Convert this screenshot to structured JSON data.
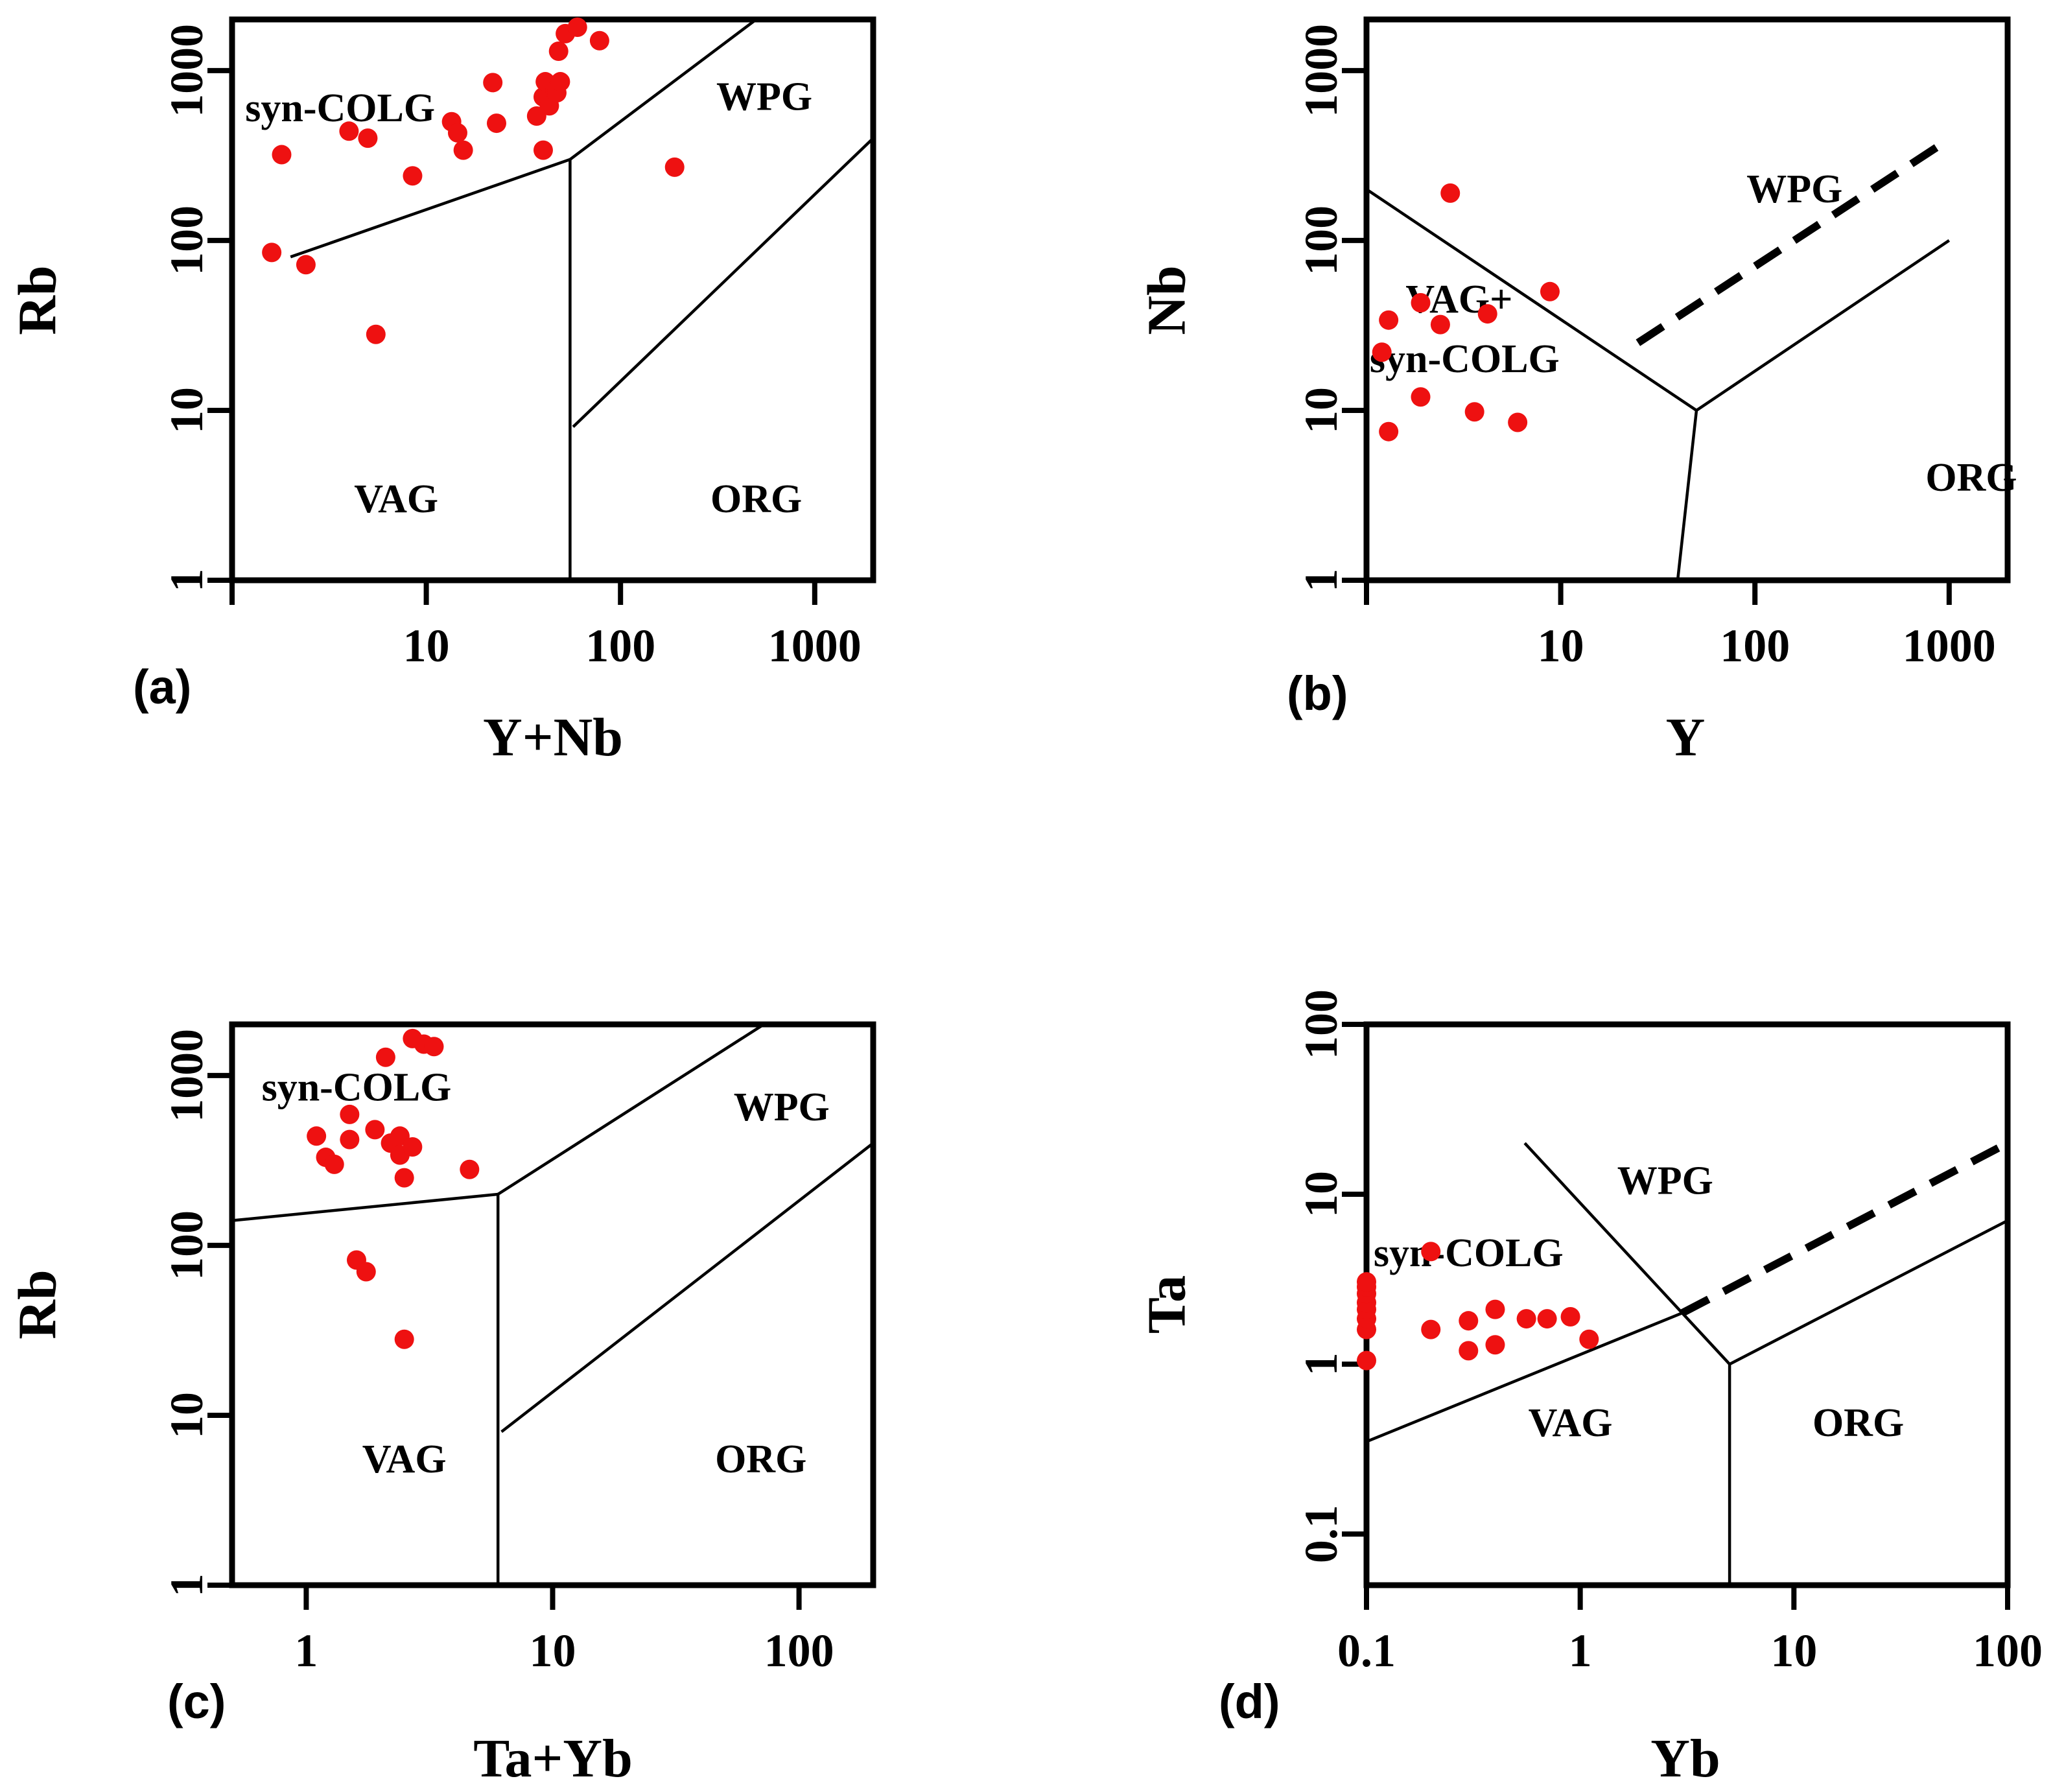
{
  "chart_data": [
    {
      "type": "scatter",
      "panel_label": "(a)",
      "xlabel": "Y+Nb",
      "ylabel": "Rb",
      "x_scale": "log",
      "y_scale": "log",
      "xlim": [
        1,
        2000
      ],
      "ylim": [
        1,
        2000
      ],
      "x_ticks": [
        {
          "value": 1,
          "label": ""
        },
        {
          "value": 10,
          "label": "10"
        },
        {
          "value": 100,
          "label": "100"
        },
        {
          "value": 1000,
          "label": "1000"
        }
      ],
      "y_ticks": [
        {
          "value": 1,
          "label": "1"
        },
        {
          "value": 10,
          "label": "10"
        },
        {
          "value": 100,
          "label": "100"
        },
        {
          "value": 1000,
          "label": "1000"
        }
      ],
      "regions": [
        {
          "label": "syn-COLG",
          "x": 3.6,
          "y": 600
        },
        {
          "label": "WPG",
          "x": 550,
          "y": 700
        },
        {
          "label": "VAG",
          "x": 7,
          "y": 3
        },
        {
          "label": "ORG",
          "x": 500,
          "y": 3
        }
      ],
      "boundaries": [
        {
          "style": "solid",
          "points": [
            [
              2,
              80
            ],
            [
              55,
              300
            ],
            [
              55,
              1
            ]
          ]
        },
        {
          "style": "solid",
          "points": [
            [
              55,
              300
            ],
            [
              500,
              2000
            ]
          ]
        },
        {
          "style": "solid",
          "points": [
            [
              57,
              8
            ],
            [
              2000,
              400
            ]
          ]
        }
      ],
      "series": [
        {
          "name": "samples",
          "color": "#ee1111",
          "points": [
            [
              1.8,
              320
            ],
            [
              1.6,
              85
            ],
            [
              2.4,
              72
            ],
            [
              4,
              440
            ],
            [
              5,
              400
            ],
            [
              5.5,
              28
            ],
            [
              8.5,
              240
            ],
            [
              13.5,
              500
            ],
            [
              14.5,
              430
            ],
            [
              15.5,
              340
            ],
            [
              22,
              850
            ],
            [
              23,
              490
            ],
            [
              37,
              540
            ],
            [
              40,
              340
            ],
            [
              40,
              700
            ],
            [
              41,
              860
            ],
            [
              43,
              620
            ],
            [
              46,
              760
            ],
            [
              47,
              740
            ],
            [
              49,
              860
            ],
            [
              48,
              1300
            ],
            [
              52,
              1650
            ],
            [
              60,
              1800
            ],
            [
              78,
              1500
            ],
            [
              190,
              270
            ]
          ]
        }
      ]
    },
    {
      "type": "scatter",
      "panel_label": "(b)",
      "xlabel": "Y",
      "ylabel": "Nb",
      "x_scale": "log",
      "y_scale": "log",
      "xlim": [
        1,
        2000
      ],
      "ylim": [
        1,
        2000
      ],
      "x_ticks": [
        {
          "value": 1,
          "label": ""
        },
        {
          "value": 10,
          "label": "10"
        },
        {
          "value": 100,
          "label": "100"
        },
        {
          "value": 1000,
          "label": "1000"
        }
      ],
      "y_ticks": [
        {
          "value": 1,
          "label": "1"
        },
        {
          "value": 10,
          "label": "10"
        },
        {
          "value": 100,
          "label": "100"
        },
        {
          "value": 1000,
          "label": "1000"
        }
      ],
      "regions": [
        {
          "label": "WPG",
          "x": 160,
          "y": 200
        },
        {
          "label": "VAG+",
          "x": 3.0,
          "y": 45
        },
        {
          "label": "syn-COLG",
          "x": 3.2,
          "y": 20
        },
        {
          "label": "ORG",
          "x": 1300,
          "y": 4
        }
      ],
      "boundaries": [
        {
          "style": "solid",
          "points": [
            [
              1,
              200
            ],
            [
              50,
              10
            ],
            [
              40,
              1
            ]
          ]
        },
        {
          "style": "solid",
          "points": [
            [
              50,
              10
            ],
            [
              1000,
              100
            ]
          ]
        },
        {
          "style": "dashed",
          "points": [
            [
              25,
              25
            ],
            [
              950,
              380
            ]
          ]
        }
      ],
      "series": [
        {
          "name": "samples",
          "color": "#ee1111",
          "points": [
            [
              1.2,
              22
            ],
            [
              1.3,
              34
            ],
            [
              1.3,
              7.5
            ],
            [
              1.9,
              43
            ],
            [
              1.9,
              12
            ],
            [
              2.4,
              32
            ],
            [
              2.7,
              190
            ],
            [
              3.6,
              9.8
            ],
            [
              4.2,
              37
            ],
            [
              6,
              8.5
            ],
            [
              8.8,
              50
            ]
          ]
        }
      ]
    },
    {
      "type": "scatter",
      "panel_label": "(c)",
      "xlabel": "Ta+Yb",
      "ylabel": "Rb",
      "x_scale": "log",
      "y_scale": "log",
      "xlim": [
        0.5,
        200
      ],
      "ylim": [
        1,
        2000
      ],
      "x_ticks": [
        {
          "value": 1,
          "label": "1"
        },
        {
          "value": 10,
          "label": "10"
        },
        {
          "value": 100,
          "label": "100"
        }
      ],
      "y_ticks": [
        {
          "value": 1,
          "label": "1"
        },
        {
          "value": 10,
          "label": "10"
        },
        {
          "value": 100,
          "label": "100"
        },
        {
          "value": 1000,
          "label": "1000"
        }
      ],
      "regions": [
        {
          "label": "syn-COLG",
          "x": 1.6,
          "y": 850
        },
        {
          "label": "WPG",
          "x": 85,
          "y": 650
        },
        {
          "label": "VAG",
          "x": 2.5,
          "y": 5.5
        },
        {
          "label": "ORG",
          "x": 70,
          "y": 5.5
        }
      ],
      "boundaries": [
        {
          "style": "solid",
          "points": [
            [
              0.5,
              140
            ],
            [
              6,
              200
            ],
            [
              6,
              1
            ]
          ]
        },
        {
          "style": "solid",
          "points": [
            [
              6,
              200
            ],
            [
              72,
              2000
            ]
          ]
        },
        {
          "style": "solid",
          "points": [
            [
              6.2,
              8
            ],
            [
              200,
              400
            ]
          ]
        }
      ],
      "series": [
        {
          "name": "samples",
          "color": "#ee1111",
          "points": [
            [
              1.1,
              440
            ],
            [
              1.2,
              330
            ],
            [
              1.3,
              300
            ],
            [
              1.5,
              590
            ],
            [
              1.5,
              420
            ],
            [
              1.6,
              82
            ],
            [
              1.75,
              70
            ],
            [
              1.9,
              480
            ],
            [
              2.1,
              1280
            ],
            [
              2.2,
              400
            ],
            [
              2.4,
              340
            ],
            [
              2.4,
              440
            ],
            [
              2.5,
              250
            ],
            [
              2.5,
              28
            ],
            [
              2.7,
              380
            ],
            [
              2.7,
              1650
            ],
            [
              3.0,
              1530
            ],
            [
              3.3,
              1480
            ],
            [
              4.6,
              280
            ]
          ]
        }
      ]
    },
    {
      "type": "scatter",
      "panel_label": "(d)",
      "xlabel": "Yb",
      "ylabel": "Ta",
      "x_scale": "log",
      "y_scale": "log",
      "xlim": [
        0.1,
        100
      ],
      "ylim": [
        0.05,
        100
      ],
      "x_ticks": [
        {
          "value": 0.1,
          "label": "0.1"
        },
        {
          "value": 1,
          "label": "1"
        },
        {
          "value": 10,
          "label": "10"
        },
        {
          "value": 100,
          "label": "100"
        }
      ],
      "y_ticks": [
        {
          "value": 0.1,
          "label": "0.1"
        },
        {
          "value": 1,
          "label": "1"
        },
        {
          "value": 10,
          "label": "10"
        },
        {
          "value": 100,
          "label": "100"
        }
      ],
      "regions": [
        {
          "label": "WPG",
          "x": 2.5,
          "y": 12
        },
        {
          "label": "syn-COLG",
          "x": 0.3,
          "y": 4.5
        },
        {
          "label": "VAG",
          "x": 0.9,
          "y": 0.45
        },
        {
          "label": "ORG",
          "x": 20,
          "y": 0.45
        }
      ],
      "boundaries": [
        {
          "style": "solid",
          "points": [
            [
              0.1,
              0.35
            ],
            [
              3,
              2
            ],
            [
              5,
              1
            ],
            [
              5,
              0.05
            ]
          ]
        },
        {
          "style": "solid",
          "points": [
            [
              0.55,
              20
            ],
            [
              3,
              2
            ]
          ]
        },
        {
          "style": "solid",
          "points": [
            [
              5,
              1
            ],
            [
              100,
              7
            ]
          ]
        },
        {
          "style": "dashed",
          "points": [
            [
              3,
              2
            ],
            [
              100,
              20
            ]
          ]
        }
      ],
      "series": [
        {
          "name": "samples",
          "color": "#ee1111",
          "points": [
            [
              0.1,
              1.05
            ],
            [
              0.1,
              1.6
            ],
            [
              0.1,
              1.85
            ],
            [
              0.1,
              2.1
            ],
            [
              0.1,
              2.3
            ],
            [
              0.1,
              2.6
            ],
            [
              0.1,
              2.85
            ],
            [
              0.1,
              3.05
            ],
            [
              0.2,
              1.6
            ],
            [
              0.2,
              4.6
            ],
            [
              0.3,
              1.2
            ],
            [
              0.3,
              1.8
            ],
            [
              0.4,
              1.3
            ],
            [
              0.4,
              2.1
            ],
            [
              0.56,
              1.85
            ],
            [
              0.7,
              1.85
            ],
            [
              0.9,
              1.9
            ],
            [
              1.1,
              1.4
            ]
          ]
        }
      ]
    }
  ]
}
